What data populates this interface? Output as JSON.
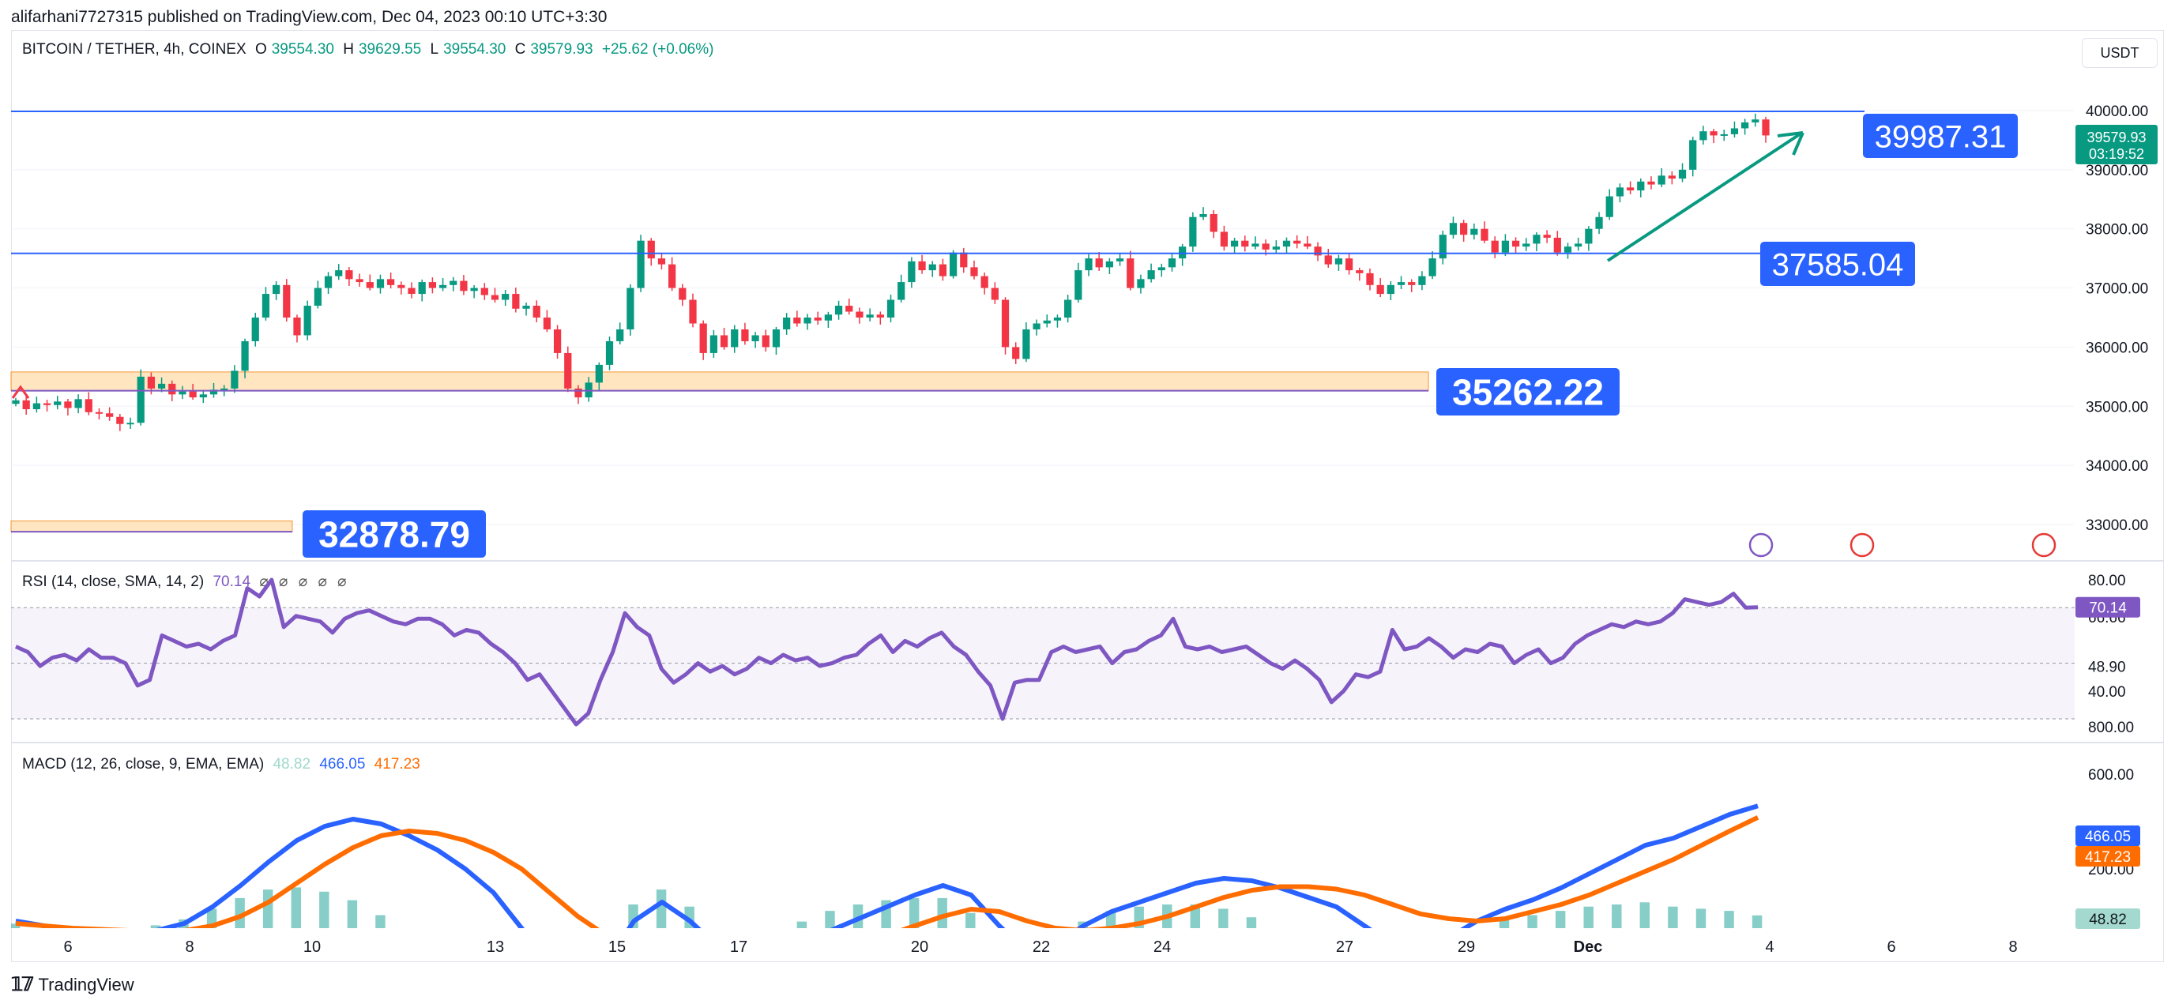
{
  "publisher": "alifarhani7727315 published on TradingView.com, Dec 04, 2023 00:10 UTC+3:30",
  "currency_button": "USDT",
  "footer_brand": "TradingView",
  "legend": {
    "symbol": "BITCOIN / TETHER, 4h, COINEX",
    "o_label": "O",
    "o_value": "39554.30",
    "h_label": "H",
    "h_value": "39629.55",
    "l_label": "L",
    "l_value": "39554.30",
    "c_label": "C",
    "c_value": "39579.93",
    "change": "+25.62 (+0.06%)"
  },
  "rsi_legend": {
    "label": "RSI (14, close, SMA, 14, 2)",
    "value": "70.14",
    "icons": "⌀ ⌀ ⌀ ⌀ ⌀"
  },
  "macd_legend": {
    "label": "MACD (12, 26, close, 9, EMA, EMA)",
    "hist": "48.82",
    "macd": "466.05",
    "signal": "417.23"
  },
  "price_badges": {
    "last": "39579.93",
    "countdown": "03:19:52"
  },
  "level_labels": [
    "39987.31",
    "37585.04",
    "35262.22",
    "32878.79"
  ],
  "colors": {
    "up": "#089981",
    "down": "#f23645",
    "line": "#2962ff",
    "label_bg": "#2962ff",
    "rsi": "#7e57c2",
    "macd": "#2962ff",
    "signal": "#ff6d00",
    "zone": "#ffe0b2"
  },
  "chart_data": [
    {
      "type": "candlestick",
      "title": "BITCOIN / TETHER, 4h, COINEX",
      "y_axis_ticks": [
        33000,
        34000,
        35000,
        36000,
        37000,
        38000,
        39000,
        40000
      ],
      "ylim": [
        32650,
        40550
      ],
      "x_tick_labels": [
        "6",
        "8",
        "10",
        "13",
        "15",
        "17",
        "20",
        "22",
        "24",
        "27",
        "29",
        "Dec",
        "4",
        "6",
        "8"
      ],
      "closes": [
        35100,
        34950,
        35050,
        35020,
        35080,
        34970,
        35120,
        34900,
        34880,
        34820,
        34700,
        34720,
        35500,
        35300,
        35380,
        35200,
        35250,
        35150,
        35200,
        35280,
        35300,
        35600,
        36100,
        36500,
        36900,
        37050,
        36500,
        36200,
        36700,
        37000,
        37200,
        37300,
        37150,
        37100,
        37000,
        37150,
        37050,
        37000,
        36900,
        37100,
        37000,
        37050,
        37120,
        36950,
        37000,
        36880,
        36800,
        36900,
        36650,
        36700,
        36500,
        36300,
        35900,
        35300,
        35150,
        35400,
        35700,
        36100,
        36300,
        37000,
        37800,
        37500,
        37400,
        37000,
        36800,
        36400,
        35900,
        36200,
        36000,
        36300,
        36100,
        36200,
        36000,
        36300,
        36500,
        36400,
        36500,
        36450,
        36550,
        36700,
        36600,
        36500,
        36550,
        36500,
        36800,
        37100,
        37450,
        37300,
        37400,
        37200,
        37600,
        37350,
        37200,
        37000,
        36800,
        36000,
        35800,
        36300,
        36400,
        36450,
        36500,
        36800,
        37300,
        37500,
        37350,
        37450,
        37500,
        37000,
        37150,
        37300,
        37350,
        37500,
        37700,
        38200,
        38250,
        37950,
        37700,
        37800,
        37700,
        37750,
        37650,
        37700,
        37800,
        37750,
        37700,
        37550,
        37400,
        37500,
        37300,
        37250,
        37050,
        36900,
        37050,
        37100,
        37050,
        37200,
        37500,
        37900,
        38100,
        37900,
        38000,
        37800,
        37600,
        37800,
        37700,
        37750,
        37900,
        37850,
        37600,
        37700,
        37750,
        38000,
        38200,
        38550,
        38700,
        38650,
        38800,
        38750,
        38900,
        38850,
        39000,
        39500,
        39650,
        39580,
        39600,
        39700,
        39800,
        39850,
        39580
      ],
      "levels": [
        39987.31,
        37585.04,
        35262.22,
        32878.79
      ]
    },
    {
      "type": "line",
      "title": "RSI (14, close, SMA, 14, 2)",
      "y_axis_ticks": [
        40.0,
        48.9,
        66.66,
        80.0
      ],
      "band": [
        30,
        70
      ],
      "last_value": 70.14,
      "values": [
        56,
        54,
        49,
        52,
        53,
        51,
        55,
        52,
        52,
        50,
        42,
        44,
        60,
        58,
        56,
        57,
        55,
        58,
        60,
        77,
        74,
        80,
        63,
        67,
        66,
        65,
        61,
        66,
        68,
        69,
        67,
        65,
        64,
        66,
        66,
        64,
        60,
        62,
        61,
        57,
        54,
        50,
        44,
        46,
        40,
        34,
        28,
        32,
        44,
        54,
        68,
        63,
        60,
        48,
        43,
        46,
        50,
        47,
        49,
        46,
        48,
        52,
        50,
        53,
        51,
        52,
        49,
        50,
        52,
        53,
        57,
        60,
        54,
        58,
        56,
        59,
        61,
        56,
        53,
        47,
        42,
        30,
        43,
        44,
        44,
        54,
        56,
        54,
        55,
        56,
        50,
        54,
        55,
        58,
        60,
        66,
        56,
        55,
        56,
        54,
        55,
        56,
        53,
        50,
        48,
        51,
        48,
        44,
        36,
        40,
        46,
        45,
        47,
        62,
        55,
        56,
        59,
        56,
        52,
        55,
        54,
        57,
        56,
        50,
        53,
        55,
        50,
        52,
        57,
        60,
        62,
        64,
        63,
        65,
        64,
        65,
        68,
        73,
        72,
        71,
        72,
        75,
        70,
        70.14
      ]
    },
    {
      "type": "line",
      "title": "MACD (12, 26, close, 9, EMA, EMA)",
      "y_axis_ticks": [
        200.0,
        600.0,
        800.0
      ],
      "series": [
        {
          "name": "MACD",
          "values": [
            -20,
            -40,
            -60,
            -70,
            -80,
            -60,
            -30,
            40,
            130,
            230,
            320,
            380,
            410,
            390,
            340,
            280,
            200,
            100,
            -50,
            -200,
            -260,
            -200,
            -20,
            60,
            -20,
            -130,
            -180,
            -160,
            -120,
            -60,
            -10,
            40,
            90,
            130,
            90,
            -40,
            -150,
            -120,
            -40,
            20,
            60,
            100,
            140,
            160,
            150,
            120,
            80,
            40,
            -40,
            -120,
            -140,
            -90,
            -20,
            30,
            70,
            120,
            180,
            240,
            300,
            330,
            380,
            430,
            466.05
          ]
        },
        {
          "name": "Signal",
          "values": [
            -30,
            -40,
            -50,
            -55,
            -60,
            -62,
            -60,
            -40,
            0,
            60,
            140,
            220,
            290,
            340,
            360,
            350,
            320,
            270,
            200,
            100,
            0,
            -80,
            -120,
            -110,
            -110,
            -120,
            -130,
            -140,
            -140,
            -130,
            -110,
            -80,
            -40,
            0,
            30,
            20,
            -20,
            -50,
            -60,
            -50,
            -30,
            0,
            40,
            80,
            110,
            125,
            125,
            115,
            90,
            50,
            10,
            -10,
            -20,
            -10,
            20,
            50,
            90,
            140,
            190,
            240,
            300,
            360,
            417.23
          ]
        }
      ],
      "histogram_last": 48.82
    }
  ]
}
